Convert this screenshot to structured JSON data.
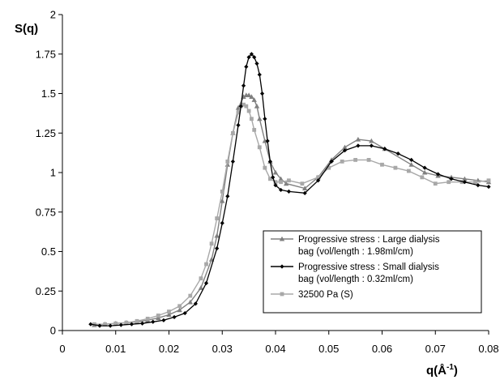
{
  "chart_data": {
    "type": "line",
    "ylabel": "S(q)",
    "xlabel_base": "q(Å",
    "xlabel_sup": "-1",
    "xlabel_close": ")",
    "xlim": [
      0,
      0.08
    ],
    "ylim": [
      0,
      2
    ],
    "x_tick_values": [
      0,
      0.01,
      0.02,
      0.03,
      0.04,
      0.05,
      0.06,
      0.07,
      0.08
    ],
    "x_tick_labels": [
      "0",
      "0.01",
      "0.02",
      "0.03",
      "0.04",
      "0.05",
      "0.06",
      "0.07",
      "0.08"
    ],
    "y_tick_values": [
      0,
      0.25,
      0.5,
      0.75,
      1,
      1.25,
      1.5,
      1.75,
      2
    ],
    "y_tick_labels": [
      "0",
      "0.25",
      "0.5",
      "0.75",
      "1",
      "1.25",
      "1.5",
      "1.75",
      "2"
    ],
    "grid": false,
    "legend_position": "bottom-right",
    "series": [
      {
        "name": "Progressive stress : Large dialysis bag (vol/length : 1.98ml/cm)",
        "legend_lines": [
          "Progressive stress : Large dialysis",
          "bag (vol/length : 1.98ml/cm)"
        ],
        "color": "#808080",
        "marker": "triangle",
        "x": [
          0.006,
          0.008,
          0.01,
          0.012,
          0.014,
          0.016,
          0.018,
          0.02,
          0.022,
          0.024,
          0.026,
          0.028,
          0.029,
          0.03,
          0.031,
          0.032,
          0.033,
          0.034,
          0.0345,
          0.035,
          0.0355,
          0.036,
          0.0365,
          0.037,
          0.038,
          0.039,
          0.04,
          0.041,
          0.042,
          0.0455,
          0.048,
          0.0505,
          0.053,
          0.0555,
          0.058,
          0.0605,
          0.0655,
          0.068,
          0.0705,
          0.073,
          0.0755,
          0.078,
          0.08
        ],
        "y": [
          0.035,
          0.04,
          0.045,
          0.05,
          0.055,
          0.065,
          0.08,
          0.1,
          0.13,
          0.18,
          0.27,
          0.45,
          0.6,
          0.82,
          1.05,
          1.25,
          1.41,
          1.48,
          1.49,
          1.49,
          1.48,
          1.46,
          1.42,
          1.34,
          1.2,
          1.07,
          1.0,
          0.96,
          0.93,
          0.9,
          0.97,
          1.08,
          1.16,
          1.21,
          1.2,
          1.15,
          1.05,
          1.0,
          0.98,
          0.97,
          0.96,
          0.95,
          0.94
        ]
      },
      {
        "name": "Progressive stress : Small dialysis bag (vol/length : 0.32ml/cm)",
        "legend_lines": [
          "Progressive stress : Small dialysis",
          "bag (vol/length : 0.32ml/cm)"
        ],
        "color": "#000000",
        "marker": "diamond",
        "x": [
          0.0053,
          0.007,
          0.009,
          0.011,
          0.013,
          0.015,
          0.017,
          0.019,
          0.021,
          0.023,
          0.025,
          0.027,
          0.029,
          0.03,
          0.031,
          0.032,
          0.033,
          0.0335,
          0.034,
          0.0345,
          0.035,
          0.0355,
          0.036,
          0.0365,
          0.037,
          0.0375,
          0.038,
          0.0385,
          0.039,
          0.0395,
          0.04,
          0.041,
          0.0425,
          0.0455,
          0.048,
          0.0505,
          0.053,
          0.0555,
          0.058,
          0.0605,
          0.063,
          0.0655,
          0.068,
          0.0705,
          0.073,
          0.0755,
          0.078,
          0.08
        ],
        "y": [
          0.04,
          0.03,
          0.03,
          0.035,
          0.04,
          0.045,
          0.055,
          0.065,
          0.085,
          0.11,
          0.17,
          0.3,
          0.52,
          0.68,
          0.85,
          1.07,
          1.3,
          1.42,
          1.55,
          1.67,
          1.73,
          1.75,
          1.73,
          1.69,
          1.62,
          1.5,
          1.34,
          1.2,
          1.07,
          0.97,
          0.92,
          0.89,
          0.88,
          0.87,
          0.95,
          1.07,
          1.14,
          1.17,
          1.17,
          1.15,
          1.12,
          1.08,
          1.03,
          0.99,
          0.96,
          0.94,
          0.92,
          0.91
        ]
      },
      {
        "name": "32500 Pa (S)",
        "legend_lines": [
          "32500 Pa (S)"
        ],
        "color": "#a8a8a8",
        "marker": "square",
        "x": [
          0.006,
          0.008,
          0.01,
          0.012,
          0.014,
          0.016,
          0.018,
          0.02,
          0.022,
          0.024,
          0.026,
          0.027,
          0.028,
          0.029,
          0.03,
          0.031,
          0.032,
          0.033,
          0.0335,
          0.034,
          0.0345,
          0.035,
          0.0355,
          0.036,
          0.037,
          0.038,
          0.039,
          0.04,
          0.041,
          0.0425,
          0.045,
          0.048,
          0.05,
          0.0525,
          0.055,
          0.0575,
          0.06,
          0.0625,
          0.065,
          0.0675,
          0.07,
          0.0725,
          0.075,
          0.0775,
          0.08
        ],
        "y": [
          0.04,
          0.04,
          0.045,
          0.05,
          0.06,
          0.075,
          0.095,
          0.12,
          0.155,
          0.22,
          0.33,
          0.42,
          0.55,
          0.71,
          0.88,
          1.07,
          1.25,
          1.38,
          1.42,
          1.43,
          1.42,
          1.39,
          1.34,
          1.27,
          1.16,
          1.03,
          0.96,
          0.94,
          0.94,
          0.95,
          0.93,
          0.97,
          1.03,
          1.07,
          1.08,
          1.08,
          1.05,
          1.03,
          1.01,
          0.97,
          0.93,
          0.94,
          0.94,
          0.94,
          0.95
        ]
      }
    ]
  }
}
